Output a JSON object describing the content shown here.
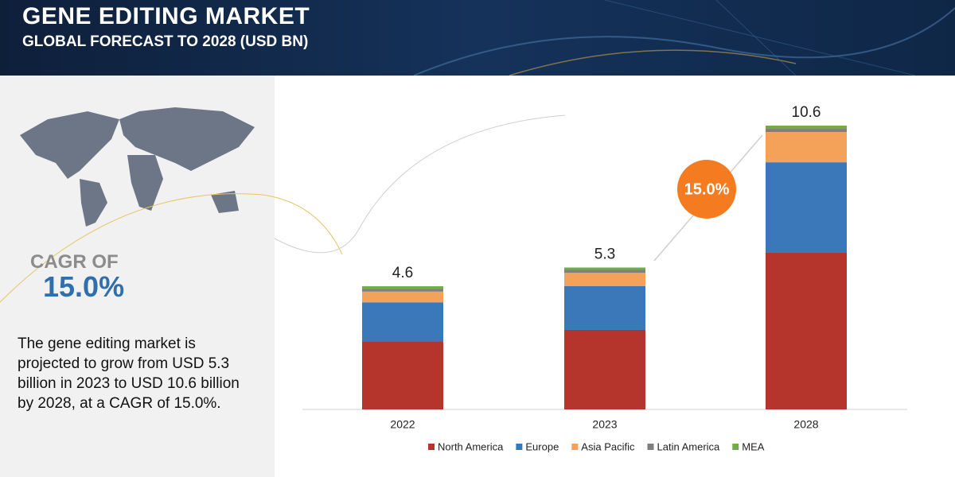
{
  "header": {
    "title": "GENE EDITING MARKET",
    "subtitle": "GLOBAL FORECAST TO 2028 (USD BN)"
  },
  "sidebar": {
    "cagr_label": "CAGR OF",
    "cagr_value": "15.0%",
    "description": "The gene editing market is projected to grow from USD 5.3 billion in 2023 to USD 10.6 billion by 2028, at a CAGR of 15.0%."
  },
  "chart_data": {
    "type": "stacked_bar",
    "categories": [
      "2022",
      "2023",
      "2028"
    ],
    "totals": [
      4.6,
      5.3,
      10.6
    ],
    "badge": "15.0%",
    "series": [
      {
        "name": "North America",
        "color": "#b5352d",
        "values": [
          2.55,
          2.97,
          5.85
        ]
      },
      {
        "name": "Europe",
        "color": "#3a78b9",
        "values": [
          1.45,
          1.64,
          3.38
        ]
      },
      {
        "name": "Asia Pacific",
        "color": "#f4a15a",
        "values": [
          0.4,
          0.49,
          1.13
        ]
      },
      {
        "name": "Latin America",
        "color": "#7f7f7f",
        "values": [
          0.1,
          0.11,
          0.12
        ]
      },
      {
        "name": "MEA",
        "color": "#70ad47",
        "values": [
          0.1,
          0.09,
          0.12
        ]
      }
    ]
  }
}
